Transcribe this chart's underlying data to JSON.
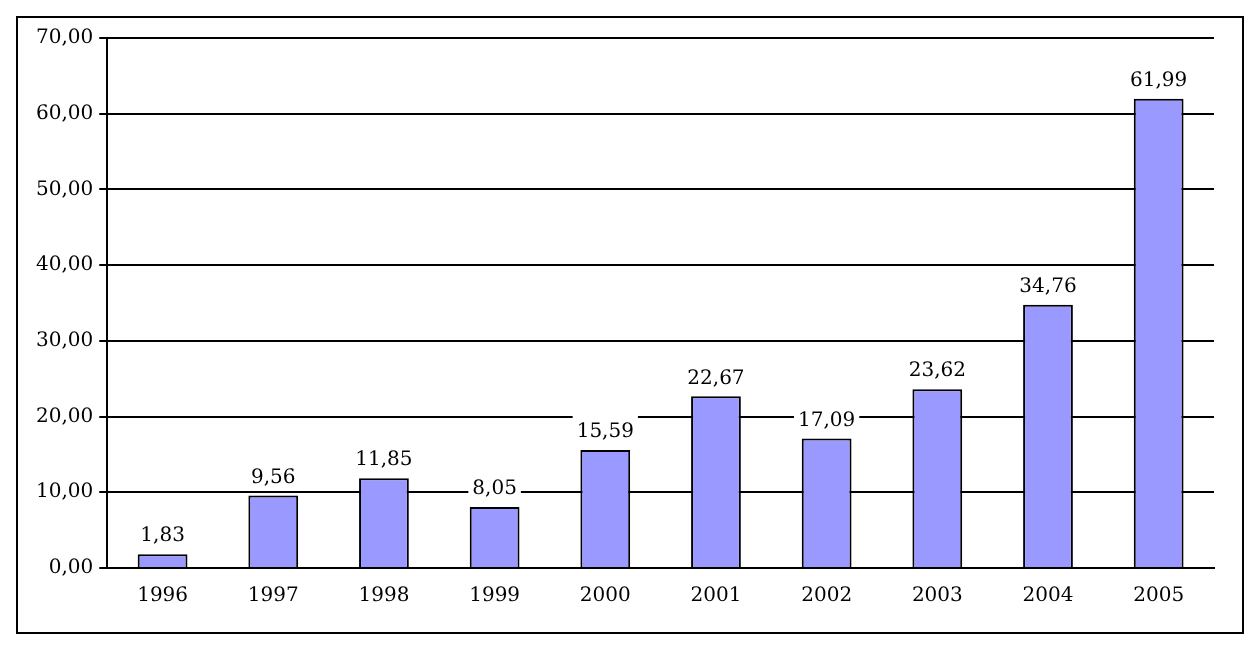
{
  "chart_data": {
    "type": "bar",
    "categories": [
      "1996",
      "1997",
      "1998",
      "1999",
      "2000",
      "2001",
      "2002",
      "2003",
      "2004",
      "2005"
    ],
    "values": [
      1.83,
      9.56,
      11.85,
      8.05,
      15.59,
      22.67,
      17.09,
      23.62,
      34.76,
      61.99
    ],
    "value_labels": [
      "1,83",
      "9,56",
      "11,85",
      "8,05",
      "15,59",
      "22,67",
      "17,09",
      "23,62",
      "34,76",
      "61,99"
    ],
    "color": "#9999ff",
    "ylim": [
      0,
      70
    ],
    "yticks": [
      {
        "value": 0,
        "label": "0,00"
      },
      {
        "value": 10,
        "label": "10,00"
      },
      {
        "value": 20,
        "label": "20,00"
      },
      {
        "value": 30,
        "label": "30,00"
      },
      {
        "value": 40,
        "label": "40,00"
      },
      {
        "value": 50,
        "label": "50,00"
      },
      {
        "value": 60,
        "label": "60,00"
      },
      {
        "value": 70,
        "label": "70,00"
      }
    ],
    "grid": "y",
    "legend": false
  }
}
